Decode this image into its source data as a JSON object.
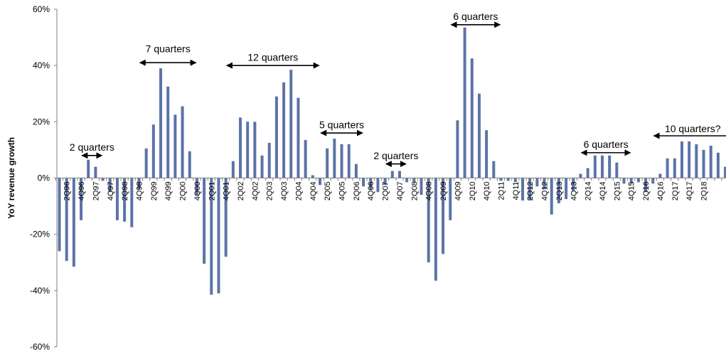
{
  "chart_data": {
    "type": "bar",
    "title": "",
    "xlabel": "",
    "ylabel": "YoY revenue growth",
    "ylim": [
      -60,
      60
    ],
    "yticks": [
      60,
      40,
      20,
      0,
      -20,
      -40,
      -60
    ],
    "ytick_labels": [
      "60%",
      "40%",
      "20%",
      "0%",
      "-20%",
      "-40%",
      "-60%"
    ],
    "bar_color": "#5B73A6",
    "series": [
      {
        "name": "YoY revenue growth",
        "values": [
          -26,
          -29.5,
          -31.5,
          -15,
          6.5,
          4,
          -1,
          -5,
          -15,
          -15.5,
          -17.5,
          -4,
          10.5,
          19,
          39,
          32.5,
          22.5,
          25.5,
          9.5,
          -6,
          -30.5,
          -41.5,
          -41,
          -28,
          6,
          21.5,
          20,
          20,
          8,
          12.5,
          29,
          34,
          38.5,
          28.5,
          13.5,
          1,
          -2.5,
          10.5,
          14,
          12,
          12,
          5,
          -3,
          -4,
          -5,
          -2.5,
          2.5,
          2.5,
          -1.5,
          -1.5,
          -6,
          -30,
          -36.5,
          -27,
          -15,
          20.5,
          53.5,
          42.5,
          30,
          17,
          6,
          -1,
          -1,
          -1.5,
          -8,
          -8,
          -3,
          -4,
          -13,
          -9,
          -7.5,
          -4.5,
          1.5,
          3.5,
          8,
          8,
          8,
          5.5,
          -2,
          -2,
          -1.5,
          -5,
          -2,
          1.5,
          7,
          7,
          13,
          13,
          12,
          10,
          11.5,
          9,
          4
        ]
      }
    ],
    "tick_labels": [
      "2Q96",
      "4Q96",
      "2Q97",
      "4Q97",
      "2Q98",
      "4Q98",
      "2Q99",
      "4Q99",
      "2Q00",
      "4Q00",
      "2Q01",
      "4Q01",
      "2Q02",
      "4Q02",
      "2Q03",
      "4Q03",
      "2Q04",
      "4Q04",
      "2Q05",
      "4Q05",
      "2Q06",
      "4Q06",
      "2Q07",
      "4Q07",
      "2Q08",
      "4Q08",
      "2Q09",
      "4Q09",
      "2Q10",
      "4Q10",
      "2Q11",
      "4Q11",
      "2Q12",
      "4Q12",
      "2Q13",
      "4Q13",
      "2Q14",
      "4Q14",
      "2Q15",
      "4Q15",
      "2Q16",
      "4Q16",
      "2Q17",
      "4Q17",
      "2Q18"
    ],
    "tick_label_offset": 1,
    "tick_label_step": 2,
    "annotations": [
      {
        "text": "2 quarters",
        "start_index": 4,
        "end_index": 5,
        "arrow_y": 8,
        "text_y": 11
      },
      {
        "text": "7 quarters",
        "start_index": 12,
        "end_index": 18,
        "arrow_y": 41,
        "text_y": 46
      },
      {
        "text": "12 quarters",
        "start_index": 24,
        "end_index": 35,
        "arrow_y": 40,
        "text_y": 43
      },
      {
        "text": "5 quarters",
        "start_index": 37,
        "end_index": 41,
        "arrow_y": 16,
        "text_y": 19
      },
      {
        "text": "2 quarters",
        "start_index": 46,
        "end_index": 47,
        "arrow_y": 5,
        "text_y": 8
      },
      {
        "text": "6 quarters",
        "start_index": 55,
        "end_index": 60,
        "arrow_y": 54.5,
        "text_y": 57.5
      },
      {
        "text": "6 quarters",
        "start_index": 73,
        "end_index": 78,
        "arrow_y": 9,
        "text_y": 12
      },
      {
        "text": "10 quarters?",
        "start_index": 83,
        "end_index": 92,
        "arrow_y": 15,
        "text_y": 17.5
      }
    ]
  }
}
